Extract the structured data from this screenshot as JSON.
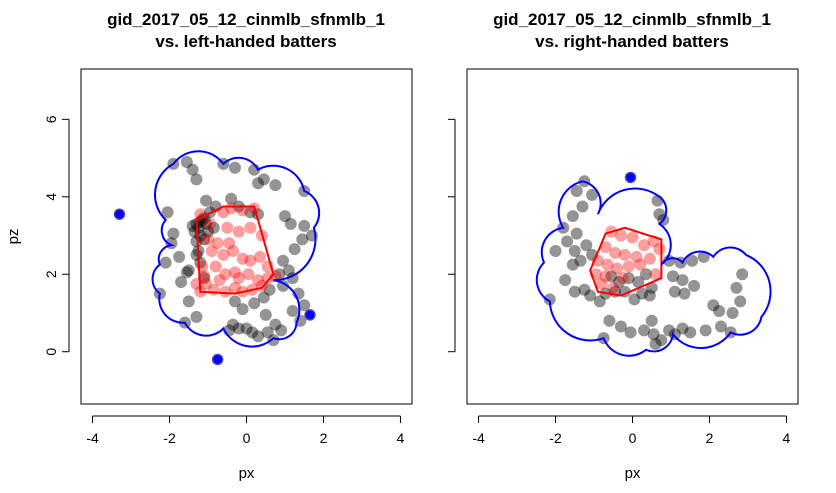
{
  "colors": {
    "background": "#ffffff",
    "axis": "#000000",
    "points_outside": "#000000",
    "points_inside": "#ff0000",
    "hull_inside": "#ff0000",
    "boundary": "#0000ff",
    "boundary_vertex": "#0000ff"
  },
  "chart_data": [
    {
      "type": "scatter",
      "title": "gid_2017_05_12_cinmlb_sfnmlb_1",
      "subtitle": "vs. left-handed batters",
      "xlabel": "px",
      "ylabel": "pz",
      "xlim": [
        -4.3,
        4.3
      ],
      "ylim": [
        -1.35,
        7.3
      ],
      "xticks": [
        -4,
        -2,
        0,
        2,
        4
      ],
      "yticks": [
        0,
        2,
        4,
        6
      ],
      "show_ylabel": true,
      "show_ytick_labels": true,
      "grid": false,
      "points_outside": [
        [
          -1.9,
          4.85
        ],
        [
          -1.55,
          4.9
        ],
        [
          -1.4,
          4.7
        ],
        [
          -1.3,
          4.45
        ],
        [
          -0.6,
          4.85
        ],
        [
          -0.3,
          4.75
        ],
        [
          0.2,
          4.7
        ],
        [
          0.45,
          4.45
        ],
        [
          0.3,
          4.35
        ],
        [
          0.75,
          4.3
        ],
        [
          1.5,
          4.15
        ],
        [
          -2.05,
          3.6
        ],
        [
          -1.9,
          3.05
        ],
        [
          -1.75,
          2.45
        ],
        [
          -1.95,
          2.8
        ],
        [
          -2.1,
          2.3
        ],
        [
          -2.25,
          1.5
        ],
        [
          -1.7,
          1.8
        ],
        [
          -1.5,
          2.1
        ],
        [
          -1.3,
          2.5
        ],
        [
          -1.2,
          2.3
        ],
        [
          -1.55,
          2.05
        ],
        [
          -1.25,
          2.6
        ],
        [
          -1.1,
          1.9
        ],
        [
          -1.4,
          3.25
        ],
        [
          -1.3,
          3.3
        ],
        [
          -1.2,
          3.35
        ],
        [
          -1.15,
          3.4
        ],
        [
          -1.1,
          3.45
        ],
        [
          -1.05,
          3.3
        ],
        [
          -1.25,
          3.2
        ],
        [
          -1.35,
          3.1
        ],
        [
          -1.2,
          3.0
        ],
        [
          -1.1,
          2.9
        ],
        [
          -1.0,
          3.1
        ],
        [
          -1.3,
          2.85
        ],
        [
          -1.05,
          3.9
        ],
        [
          -0.95,
          3.6
        ],
        [
          -0.8,
          3.75
        ],
        [
          -0.4,
          3.95
        ],
        [
          -0.2,
          3.75
        ],
        [
          0.1,
          3.6
        ],
        [
          0.3,
          3.55
        ],
        [
          -1.5,
          1.3
        ],
        [
          -1.6,
          0.75
        ],
        [
          -1.3,
          0.9
        ],
        [
          -0.3,
          1.3
        ],
        [
          -0.1,
          1.1
        ],
        [
          0.2,
          1.25
        ],
        [
          0.45,
          1.4
        ],
        [
          0.6,
          1.6
        ],
        [
          0.5,
          0.95
        ],
        [
          0.75,
          0.7
        ],
        [
          0.9,
          0.55
        ],
        [
          0.55,
          0.5
        ],
        [
          -0.35,
          0.7
        ],
        [
          -0.2,
          0.6
        ],
        [
          0.0,
          0.6
        ],
        [
          0.15,
          0.5
        ],
        [
          0.3,
          0.4
        ],
        [
          0.7,
          0.3
        ],
        [
          -0.45,
          0.55
        ],
        [
          1.0,
          3.5
        ],
        [
          1.15,
          3.3
        ],
        [
          1.5,
          3.25
        ],
        [
          1.45,
          2.9
        ],
        [
          1.7,
          3.0
        ],
        [
          1.25,
          2.65
        ],
        [
          0.95,
          2.35
        ],
        [
          1.1,
          2.1
        ],
        [
          0.85,
          2.0
        ],
        [
          0.95,
          1.7
        ],
        [
          1.2,
          1.9
        ],
        [
          1.35,
          1.5
        ],
        [
          1.5,
          1.2
        ],
        [
          1.2,
          1.05
        ],
        [
          1.4,
          0.8
        ],
        [
          -0.85,
          3.2
        ]
      ],
      "points_inside": [
        [
          -1.2,
          3.55
        ],
        [
          -0.6,
          3.6
        ],
        [
          -0.4,
          3.7
        ],
        [
          -0.1,
          3.65
        ],
        [
          0.2,
          3.7
        ],
        [
          -0.95,
          3.3
        ],
        [
          -0.5,
          3.2
        ],
        [
          -0.2,
          3.1
        ],
        [
          0.1,
          3.2
        ],
        [
          0.4,
          3.0
        ],
        [
          -1.0,
          2.9
        ],
        [
          -0.75,
          2.8
        ],
        [
          -0.45,
          2.8
        ],
        [
          -0.9,
          2.6
        ],
        [
          -0.6,
          2.5
        ],
        [
          -0.35,
          2.6
        ],
        [
          -0.1,
          2.4
        ],
        [
          0.1,
          2.35
        ],
        [
          0.35,
          2.45
        ],
        [
          0.55,
          2.2
        ],
        [
          -1.15,
          2.2
        ],
        [
          -0.8,
          2.2
        ],
        [
          -0.55,
          2.0
        ],
        [
          -0.3,
          2.05
        ],
        [
          0.05,
          2.0
        ],
        [
          0.3,
          1.85
        ],
        [
          0.55,
          1.9
        ],
        [
          0.75,
          1.95
        ],
        [
          -1.05,
          1.75
        ],
        [
          -0.85,
          1.6
        ],
        [
          -0.55,
          1.55
        ],
        [
          -0.3,
          1.65
        ],
        [
          -0.1,
          1.55
        ],
        [
          0.15,
          1.6
        ],
        [
          0.4,
          1.7
        ],
        [
          -1.1,
          1.95
        ],
        [
          -0.7,
          1.85
        ],
        [
          -1.2,
          1.55
        ],
        [
          -1.3,
          1.75
        ],
        [
          -0.2,
          1.9
        ]
      ],
      "hull_inside": [
        [
          -1.2,
          1.55
        ],
        [
          -1.3,
          3.4
        ],
        [
          -0.6,
          3.75
        ],
        [
          0.2,
          3.75
        ],
        [
          0.7,
          2.0
        ],
        [
          0.4,
          1.65
        ],
        [
          -0.3,
          1.5
        ]
      ],
      "boundary_vertices": [
        [
          -1.9,
          4.85
        ],
        [
          -0.6,
          4.85
        ],
        [
          0.3,
          4.7
        ],
        [
          1.5,
          4.15
        ],
        [
          1.75,
          3.2
        ],
        [
          0.7,
          1.85
        ],
        [
          1.3,
          0.75
        ],
        [
          0.7,
          0.35
        ],
        [
          -0.6,
          0.6
        ],
        [
          -1.6,
          0.75
        ],
        [
          -2.25,
          1.5
        ],
        [
          -2.25,
          2.25
        ],
        [
          -1.95,
          2.75
        ],
        [
          -2.1,
          3.4
        ]
      ],
      "highlight_points": [
        [
          -3.3,
          3.55
        ],
        [
          -0.75,
          -0.2
        ],
        [
          1.65,
          0.95
        ]
      ]
    },
    {
      "type": "scatter",
      "title": "gid_2017_05_12_cinmlb_sfnmlb_1",
      "subtitle": "vs. right-handed batters",
      "xlabel": "px",
      "ylabel": "",
      "xlim": [
        -4.3,
        4.3
      ],
      "ylim": [
        -1.35,
        7.3
      ],
      "xticks": [
        -4,
        -2,
        0,
        2,
        4
      ],
      "yticks": [
        0,
        2,
        4,
        6
      ],
      "show_ylabel": false,
      "show_ytick_labels": false,
      "grid": false,
      "points_outside": [
        [
          -1.45,
          4.15
        ],
        [
          -1.25,
          4.4
        ],
        [
          -1.05,
          4.05
        ],
        [
          -1.3,
          3.75
        ],
        [
          -1.55,
          3.5
        ],
        [
          -1.45,
          3.05
        ],
        [
          -1.8,
          3.2
        ],
        [
          -1.7,
          2.85
        ],
        [
          -2.0,
          2.6
        ],
        [
          -1.5,
          2.6
        ],
        [
          -1.2,
          2.75
        ],
        [
          -1.35,
          2.35
        ],
        [
          -1.05,
          2.5
        ],
        [
          -1.55,
          2.25
        ],
        [
          -1.75,
          1.85
        ],
        [
          -1.5,
          1.55
        ],
        [
          -2.15,
          1.35
        ],
        [
          -1.25,
          1.6
        ],
        [
          -1.1,
          1.45
        ],
        [
          -0.85,
          1.3
        ],
        [
          -0.7,
          1.5
        ],
        [
          -0.45,
          1.55
        ],
        [
          -0.2,
          1.55
        ],
        [
          0.05,
          1.35
        ],
        [
          0.25,
          1.5
        ],
        [
          0.45,
          1.45
        ],
        [
          -0.6,
          0.8
        ],
        [
          -0.3,
          0.65
        ],
        [
          -0.05,
          0.5
        ],
        [
          0.3,
          0.55
        ],
        [
          0.5,
          0.8
        ],
        [
          0.55,
          0.45
        ],
        [
          0.6,
          0.2
        ],
        [
          0.75,
          0.3
        ],
        [
          0.95,
          0.55
        ],
        [
          1.1,
          0.45
        ],
        [
          1.3,
          0.6
        ],
        [
          1.5,
          0.5
        ],
        [
          1.9,
          0.55
        ],
        [
          2.3,
          0.65
        ],
        [
          2.55,
          0.5
        ],
        [
          -0.75,
          0.35
        ],
        [
          0.65,
          3.9
        ],
        [
          0.7,
          3.55
        ],
        [
          0.8,
          3.4
        ],
        [
          0.95,
          2.35
        ],
        [
          1.25,
          2.3
        ],
        [
          1.55,
          2.35
        ],
        [
          1.85,
          2.45
        ],
        [
          1.05,
          1.95
        ],
        [
          1.3,
          1.85
        ],
        [
          1.1,
          1.55
        ],
        [
          1.35,
          1.5
        ],
        [
          1.6,
          1.7
        ],
        [
          2.1,
          1.2
        ],
        [
          2.25,
          1.05
        ],
        [
          2.6,
          1.0
        ],
        [
          2.8,
          1.3
        ],
        [
          2.7,
          1.65
        ],
        [
          2.85,
          2.0
        ],
        [
          -0.35,
          1.8
        ],
        [
          -0.55,
          1.95
        ],
        [
          0.15,
          1.8
        ],
        [
          -0.1,
          1.9
        ],
        [
          0.35,
          2.0
        ],
        [
          0.5,
          1.65
        ]
      ],
      "points_inside": [
        [
          -0.55,
          3.1
        ],
        [
          -0.3,
          3.0
        ],
        [
          0.0,
          2.95
        ],
        [
          0.3,
          2.75
        ],
        [
          0.55,
          2.85
        ],
        [
          -0.7,
          2.7
        ],
        [
          -0.45,
          2.55
        ],
        [
          -0.2,
          2.5
        ],
        [
          0.1,
          2.45
        ],
        [
          0.45,
          2.4
        ],
        [
          -0.9,
          2.35
        ],
        [
          -0.65,
          2.25
        ],
        [
          -0.4,
          2.15
        ],
        [
          -0.1,
          2.2
        ],
        [
          0.2,
          2.25
        ],
        [
          -0.95,
          2.0
        ],
        [
          -0.7,
          1.95
        ],
        [
          -0.25,
          1.9
        ],
        [
          0.6,
          2.0
        ],
        [
          -0.8,
          1.75
        ],
        [
          -0.5,
          1.65
        ],
        [
          0.7,
          2.65
        ]
      ],
      "hull_inside": [
        [
          -1.1,
          2.1
        ],
        [
          -0.7,
          3.05
        ],
        [
          -0.2,
          3.2
        ],
        [
          0.75,
          2.9
        ],
        [
          0.75,
          1.9
        ],
        [
          -0.3,
          1.45
        ],
        [
          -0.9,
          1.55
        ]
      ],
      "boundary_vertices": [
        [
          -1.3,
          4.4
        ],
        [
          -0.9,
          3.55
        ],
        [
          0.7,
          4.0
        ],
        [
          0.7,
          3.3
        ],
        [
          0.75,
          2.25
        ],
        [
          1.3,
          2.3
        ],
        [
          2.1,
          2.45
        ],
        [
          2.95,
          2.5
        ],
        [
          3.35,
          0.9
        ],
        [
          2.55,
          0.5
        ],
        [
          1.05,
          0.45
        ],
        [
          0.35,
          0.05
        ],
        [
          -0.75,
          0.35
        ],
        [
          -2.15,
          1.3
        ],
        [
          -2.3,
          2.3
        ],
        [
          -1.8,
          3.2
        ]
      ],
      "highlight_points": [
        [
          -0.05,
          4.5
        ]
      ]
    }
  ]
}
